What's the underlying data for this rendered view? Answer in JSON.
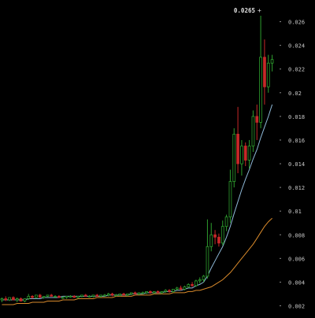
{
  "chart_data": {
    "type": "candlestick",
    "title": "",
    "xlabel": "",
    "ylabel": "",
    "ylim": [
      0.0015,
      0.0275
    ],
    "y_axis_position": "right",
    "grid": false,
    "y_ticks": [
      "0.026",
      "0.024",
      "0.022",
      "0.02",
      "0.018",
      "0.016",
      "0.014",
      "0.012",
      "0.01",
      "0.008",
      "0.006",
      "0.004",
      "0.002"
    ],
    "y_tick_values": [
      0.026,
      0.024,
      0.022,
      0.02,
      0.018,
      0.016,
      0.014,
      0.012,
      0.01,
      0.008,
      0.006,
      0.004,
      0.002
    ],
    "high_annotation": {
      "label": "0.0265",
      "value": 0.0265,
      "arrow": "+"
    },
    "colors": {
      "background": "#000000",
      "up": "#2e9e2e",
      "down": "#c62828",
      "ma_short": "#8fb9d8",
      "ma_long": "#d98a2b",
      "text": "#c8c8c8"
    },
    "candles": [
      [
        0.0025,
        0.0027,
        0.0023,
        0.0026
      ],
      [
        0.0026,
        0.0028,
        0.0024,
        0.0025
      ],
      [
        0.0025,
        0.0027,
        0.0024,
        0.0027
      ],
      [
        0.0027,
        0.0028,
        0.0025,
        0.0025
      ],
      [
        0.0025,
        0.0027,
        0.0023,
        0.0026
      ],
      [
        0.0026,
        0.0027,
        0.0024,
        0.0024
      ],
      [
        0.0024,
        0.0026,
        0.0023,
        0.0026
      ],
      [
        0.0026,
        0.003,
        0.0025,
        0.0028
      ],
      [
        0.0028,
        0.0029,
        0.0026,
        0.0027
      ],
      [
        0.0027,
        0.0029,
        0.0026,
        0.0029
      ],
      [
        0.0029,
        0.003,
        0.0027,
        0.0027
      ],
      [
        0.0027,
        0.0028,
        0.0026,
        0.0028
      ],
      [
        0.0028,
        0.0029,
        0.0027,
        0.0029
      ],
      [
        0.0029,
        0.003,
        0.0028,
        0.0028
      ],
      [
        0.0028,
        0.0029,
        0.0027,
        0.0028
      ],
      [
        0.0028,
        0.0029,
        0.0027,
        0.0027
      ],
      [
        0.0027,
        0.0028,
        0.0026,
        0.0027
      ],
      [
        0.0027,
        0.0028,
        0.0026,
        0.0028
      ],
      [
        0.0028,
        0.0029,
        0.0027,
        0.0028
      ],
      [
        0.0028,
        0.0029,
        0.0027,
        0.0027
      ],
      [
        0.0027,
        0.0028,
        0.0026,
        0.0028
      ],
      [
        0.0028,
        0.0029,
        0.0027,
        0.0029
      ],
      [
        0.0029,
        0.003,
        0.0028,
        0.0028
      ],
      [
        0.0028,
        0.0029,
        0.0027,
        0.0028
      ],
      [
        0.0028,
        0.0029,
        0.0027,
        0.0029
      ],
      [
        0.0029,
        0.003,
        0.0028,
        0.0028
      ],
      [
        0.0028,
        0.0029,
        0.0027,
        0.0029
      ],
      [
        0.0029,
        0.003,
        0.0028,
        0.0029
      ],
      [
        0.0029,
        0.0031,
        0.0028,
        0.003
      ],
      [
        0.003,
        0.0031,
        0.0028,
        0.0029
      ],
      [
        0.0029,
        0.003,
        0.0028,
        0.0029
      ],
      [
        0.0029,
        0.003,
        0.0028,
        0.003
      ],
      [
        0.003,
        0.0031,
        0.0029,
        0.0029
      ],
      [
        0.0029,
        0.003,
        0.0028,
        0.003
      ],
      [
        0.003,
        0.0031,
        0.0029,
        0.0031
      ],
      [
        0.0031,
        0.0032,
        0.003,
        0.003
      ],
      [
        0.003,
        0.0031,
        0.0029,
        0.0031
      ],
      [
        0.0031,
        0.0032,
        0.003,
        0.0031
      ],
      [
        0.0031,
        0.0032,
        0.003,
        0.0032
      ],
      [
        0.0032,
        0.0033,
        0.003,
        0.0031
      ],
      [
        0.0031,
        0.0032,
        0.003,
        0.0032
      ],
      [
        0.0032,
        0.0033,
        0.0031,
        0.0031
      ],
      [
        0.0031,
        0.0032,
        0.003,
        0.0032
      ],
      [
        0.0032,
        0.0034,
        0.0031,
        0.0033
      ],
      [
        0.0033,
        0.0034,
        0.0031,
        0.0032
      ],
      [
        0.0032,
        0.0034,
        0.0031,
        0.0034
      ],
      [
        0.0034,
        0.0036,
        0.0033,
        0.0035
      ],
      [
        0.0035,
        0.0037,
        0.0033,
        0.0034
      ],
      [
        0.0034,
        0.0037,
        0.0033,
        0.0036
      ],
      [
        0.0036,
        0.0039,
        0.0035,
        0.0038
      ],
      [
        0.0038,
        0.004,
        0.0036,
        0.0037
      ],
      [
        0.0037,
        0.0042,
        0.0036,
        0.0041
      ],
      [
        0.0041,
        0.0044,
        0.0039,
        0.0042
      ],
      [
        0.0042,
        0.0046,
        0.004,
        0.0045
      ],
      [
        0.0045,
        0.0093,
        0.0043,
        0.007
      ],
      [
        0.007,
        0.009,
        0.0066,
        0.008
      ],
      [
        0.008,
        0.0084,
        0.0072,
        0.0078
      ],
      [
        0.0078,
        0.0081,
        0.007,
        0.0073
      ],
      [
        0.0073,
        0.0092,
        0.0071,
        0.0087
      ],
      [
        0.0087,
        0.0097,
        0.0083,
        0.0095
      ],
      [
        0.0095,
        0.0135,
        0.009,
        0.0125
      ],
      [
        0.0125,
        0.017,
        0.012,
        0.0165
      ],
      [
        0.0165,
        0.0188,
        0.0132,
        0.014
      ],
      [
        0.014,
        0.016,
        0.013,
        0.0155
      ],
      [
        0.0155,
        0.0158,
        0.0138,
        0.0143
      ],
      [
        0.0143,
        0.016,
        0.0136,
        0.0155
      ],
      [
        0.0155,
        0.0185,
        0.015,
        0.018
      ],
      [
        0.018,
        0.019,
        0.016,
        0.0175
      ],
      [
        0.0175,
        0.0265,
        0.017,
        0.023
      ],
      [
        0.023,
        0.0245,
        0.019,
        0.0205
      ],
      [
        0.0205,
        0.0232,
        0.02,
        0.0225
      ],
      [
        0.0225,
        0.0232,
        0.0218,
        0.0228
      ]
    ],
    "ma_short": [
      0.0025,
      0.0025,
      0.0025,
      0.0025,
      0.0025,
      0.0025,
      0.0025,
      0.0026,
      0.0026,
      0.0026,
      0.0026,
      0.0027,
      0.0027,
      0.0027,
      0.0027,
      0.0027,
      0.0028,
      0.0028,
      0.0028,
      0.0028,
      0.0028,
      0.0028,
      0.0028,
      0.0028,
      0.0028,
      0.0028,
      0.0028,
      0.0028,
      0.0029,
      0.0029,
      0.0029,
      0.0029,
      0.0029,
      0.0029,
      0.003,
      0.003,
      0.003,
      0.003,
      0.0031,
      0.0031,
      0.0031,
      0.0031,
      0.0031,
      0.0032,
      0.0032,
      0.0032,
      0.0033,
      0.0033,
      0.0034,
      0.0035,
      0.0035,
      0.0037,
      0.0038,
      0.004,
      0.0045,
      0.0052,
      0.0058,
      0.0064,
      0.007,
      0.0078,
      0.0087,
      0.0098,
      0.0108,
      0.0118,
      0.0127,
      0.0135,
      0.0144,
      0.0152,
      0.0162,
      0.0171,
      0.018,
      0.019
    ],
    "ma_long": [
      0.0021,
      0.0021,
      0.0021,
      0.0021,
      0.0022,
      0.0022,
      0.0022,
      0.0022,
      0.0023,
      0.0023,
      0.0023,
      0.0023,
      0.0024,
      0.0024,
      0.0024,
      0.0024,
      0.0025,
      0.0025,
      0.0025,
      0.0025,
      0.0026,
      0.0026,
      0.0026,
      0.0026,
      0.0026,
      0.0027,
      0.0027,
      0.0027,
      0.0027,
      0.0027,
      0.0028,
      0.0028,
      0.0028,
      0.0028,
      0.0028,
      0.0029,
      0.0029,
      0.0029,
      0.0029,
      0.0029,
      0.003,
      0.003,
      0.003,
      0.003,
      0.003,
      0.0031,
      0.0031,
      0.0031,
      0.0031,
      0.0032,
      0.0032,
      0.0033,
      0.0033,
      0.0034,
      0.0035,
      0.0036,
      0.0038,
      0.004,
      0.0042,
      0.0045,
      0.0048,
      0.0052,
      0.0056,
      0.006,
      0.0064,
      0.0068,
      0.0072,
      0.0077,
      0.0082,
      0.0087,
      0.0091,
      0.0094
    ]
  }
}
